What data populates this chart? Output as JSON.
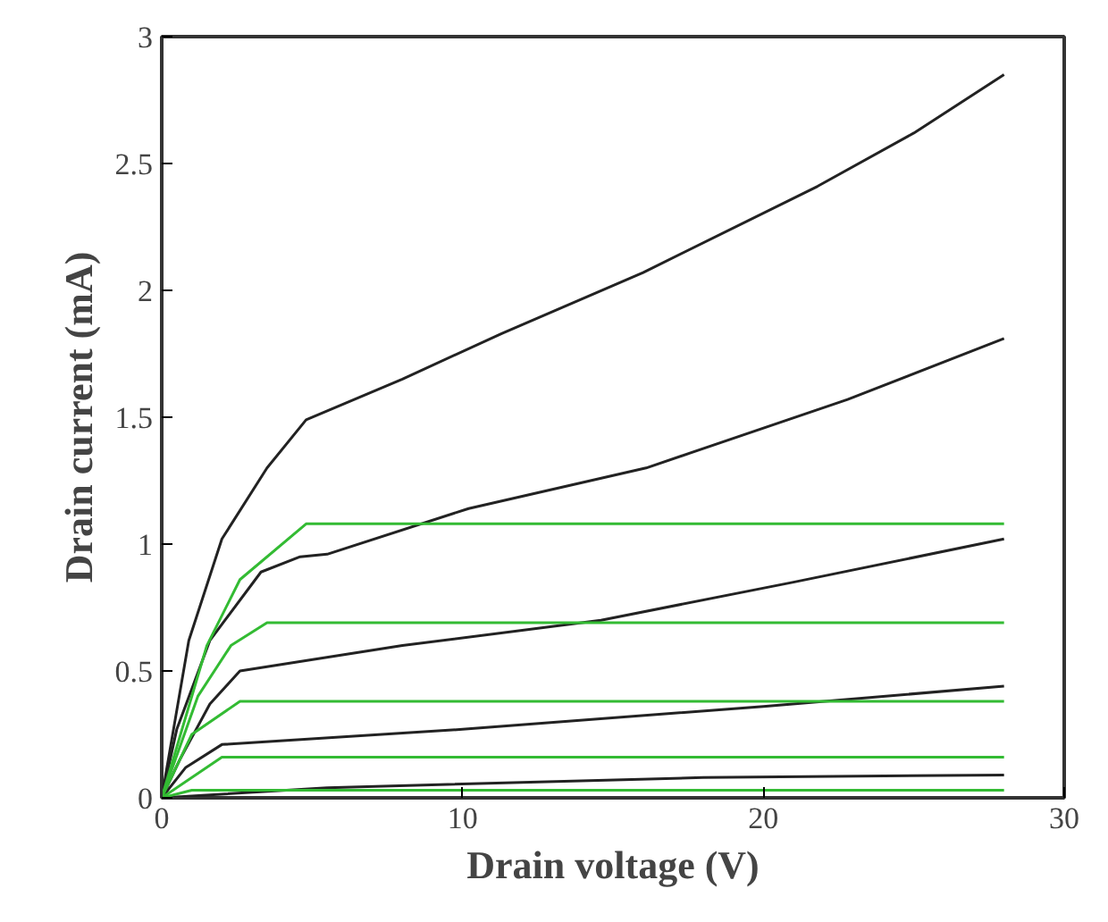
{
  "chart_data": {
    "type": "line",
    "xlabel": "Drain voltage (V)",
    "ylabel": "Drain current (mA)",
    "xlim": [
      0,
      30
    ],
    "ylim": [
      0,
      3
    ],
    "xticks": [
      0,
      10,
      20,
      30
    ],
    "yticks": [
      0,
      0.5,
      1,
      1.5,
      2,
      2.5,
      3
    ],
    "grid": false,
    "marker": "none",
    "line_style": "solid",
    "series": [
      {
        "color": "#222222",
        "x": [
          0,
          0.9,
          2.0,
          3.5,
          4.8,
          8,
          11.3,
          16,
          21.8,
          25,
          28
        ],
        "values": [
          0,
          0.62,
          1.02,
          1.3,
          1.49,
          1.65,
          1.83,
          2.07,
          2.41,
          2.62,
          2.85
        ]
      },
      {
        "color": "#222222",
        "x": [
          0,
          0.5,
          1.6,
          3.3,
          4.6,
          5.5,
          10.2,
          16.1,
          22.8,
          28
        ],
        "values": [
          0,
          0.27,
          0.62,
          0.89,
          0.95,
          0.96,
          1.14,
          1.3,
          1.57,
          1.81
        ]
      },
      {
        "color": "#222222",
        "x": [
          0,
          0.6,
          1.6,
          2.6,
          8,
          14.6,
          21,
          28
        ],
        "values": [
          0,
          0.15,
          0.37,
          0.5,
          0.6,
          0.7,
          0.85,
          1.02
        ]
      },
      {
        "color": "#222222",
        "x": [
          0,
          0.8,
          2,
          10,
          20,
          28
        ],
        "values": [
          0,
          0.12,
          0.21,
          0.27,
          0.36,
          0.44
        ]
      },
      {
        "color": "#222222",
        "x": [
          0,
          5.5,
          18,
          28
        ],
        "values": [
          0,
          0.04,
          0.08,
          0.09
        ]
      },
      {
        "color": "#33bb33",
        "x": [
          0,
          1.5,
          2.6,
          4.8,
          28
        ],
        "values": [
          0,
          0.6,
          0.86,
          1.08,
          1.08
        ]
      },
      {
        "color": "#33bb33",
        "x": [
          0,
          1.2,
          2.3,
          3.5,
          28
        ],
        "values": [
          0,
          0.4,
          0.6,
          0.69,
          0.69
        ]
      },
      {
        "color": "#33bb33",
        "x": [
          0,
          1,
          2.6,
          28
        ],
        "values": [
          0,
          0.25,
          0.38,
          0.38
        ]
      },
      {
        "color": "#33bb33",
        "x": [
          0,
          2,
          28
        ],
        "values": [
          0,
          0.16,
          0.16
        ]
      },
      {
        "color": "#33bb33",
        "x": [
          0,
          1,
          28
        ],
        "values": [
          0,
          0.03,
          0.03
        ]
      }
    ]
  }
}
